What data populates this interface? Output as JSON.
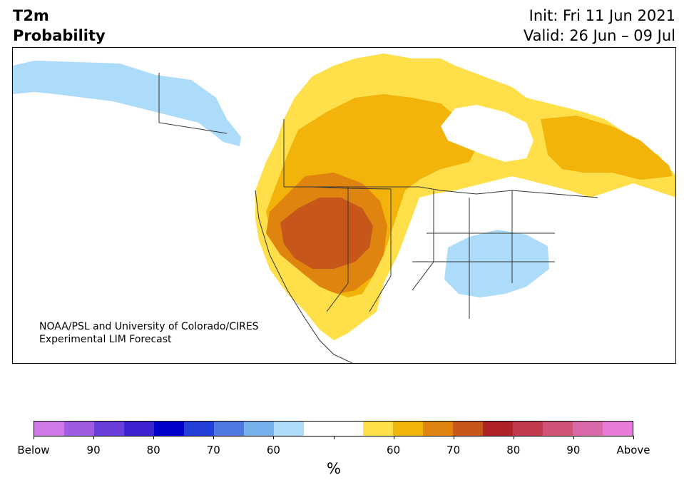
{
  "title": {
    "line1": "T2m",
    "line2": "Probability"
  },
  "header": {
    "init": "Init: Fri 11 Jun 2021",
    "valid": "Valid: 26 Jun – 09 Jul"
  },
  "credit": {
    "line1": "NOAA/PSL and University of Colorado/CIRES",
    "line2": "Experimental LIM Forecast"
  },
  "colorbar": {
    "colors": [
      "#d178e8",
      "#a05ce0",
      "#6a3ed8",
      "#3d22d0",
      "#0000cc",
      "#2540d8",
      "#4f78e0",
      "#78b0ee",
      "#acdcfa",
      "#ffffff",
      "#ffffff",
      "#ffe04a",
      "#f2b30a",
      "#e08410",
      "#c6561a",
      "#ae2226",
      "#c03a50",
      "#cf5478",
      "#d86aa8",
      "#e87ad8"
    ],
    "labels": [
      "Below",
      "90",
      "80",
      "70",
      "60",
      "",
      "60",
      "70",
      "80",
      "90",
      "Above"
    ],
    "unit": "%"
  },
  "legend_colors": {
    "above_55_60": "#ffe04a",
    "above_60_65": "#f2b30a",
    "above_65_70": "#e08410",
    "above_70_75": "#c6561a",
    "below_55_60": "#acdcfa"
  }
}
